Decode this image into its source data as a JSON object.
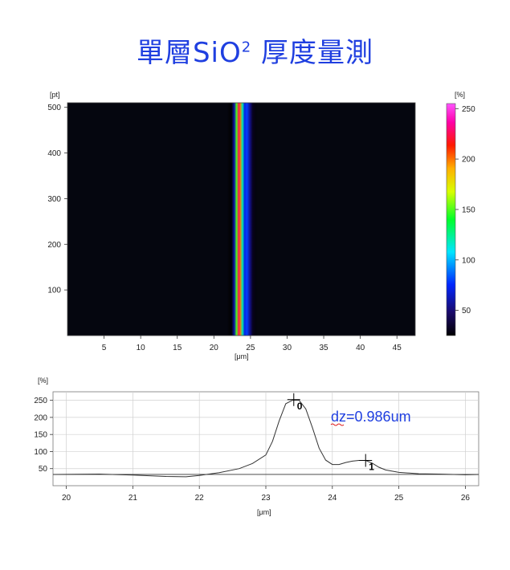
{
  "title": {
    "main": "單層SiO",
    "sup": "2",
    "tail": " 厚度量測"
  },
  "colors": {
    "title": "#1f3fe0",
    "annotation": "#1f3fe0",
    "heatmap_bg": "#05060f",
    "profile_line": "#333333"
  },
  "chart_data": [
    {
      "type": "heatmap",
      "xlabel": "[μm]",
      "ylabel": "[pt]",
      "xlim": [
        0,
        47.5
      ],
      "ylim": [
        0,
        510
      ],
      "x_ticks": [
        5,
        10,
        15,
        20,
        25,
        30,
        35,
        40,
        45
      ],
      "y_ticks": [
        100,
        200,
        300,
        400,
        500
      ],
      "colorbar": {
        "label": "[%]",
        "range": [
          25,
          255
        ],
        "ticks": [
          50,
          100,
          150,
          200,
          250
        ]
      },
      "band_profile": [
        {
          "x": 21.8,
          "v": 25
        },
        {
          "x": 22.4,
          "v": 20
        },
        {
          "x": 22.8,
          "v": 60
        },
        {
          "x": 23.1,
          "v": 150
        },
        {
          "x": 23.4,
          "v": 225
        },
        {
          "x": 23.6,
          "v": 200
        },
        {
          "x": 23.9,
          "v": 120
        },
        {
          "x": 24.2,
          "v": 70
        },
        {
          "x": 24.5,
          "v": 80
        },
        {
          "x": 24.9,
          "v": 55
        },
        {
          "x": 25.3,
          "v": 32
        },
        {
          "x": 26.0,
          "v": 26
        }
      ]
    },
    {
      "type": "line",
      "xlabel": "[μm]",
      "ylabel": "[%]",
      "xlim": [
        19.8,
        26.2
      ],
      "ylim": [
        0,
        275
      ],
      "x_ticks": [
        20,
        21,
        22,
        23,
        24,
        25,
        26
      ],
      "y_ticks": [
        50,
        100,
        150,
        200,
        250
      ],
      "series": [
        {
          "x": [
            19.8,
            20.5,
            21.0,
            21.5,
            21.8,
            22.0,
            22.3,
            22.6,
            22.8,
            23.0,
            23.1,
            23.2,
            23.3,
            23.4,
            23.5,
            23.6,
            23.7,
            23.8,
            23.9,
            24.0,
            24.1,
            24.2,
            24.3,
            24.4,
            24.5,
            24.6,
            24.7,
            24.8,
            25.0,
            25.3,
            25.6,
            26.0,
            26.2
          ],
          "y": [
            33,
            34,
            31,
            27,
            26,
            30,
            38,
            50,
            65,
            90,
            130,
            190,
            240,
            250,
            250,
            225,
            170,
            110,
            75,
            62,
            62,
            68,
            72,
            74,
            74,
            66,
            54,
            46,
            39,
            35,
            34,
            32,
            33
          ]
        }
      ],
      "reference_line_y": 33,
      "markers": [
        {
          "label": "0",
          "x": 23.42,
          "y": 252
        },
        {
          "label": "1",
          "x": 24.5,
          "y": 74
        }
      ],
      "annotation": "dz=0.986um"
    }
  ]
}
